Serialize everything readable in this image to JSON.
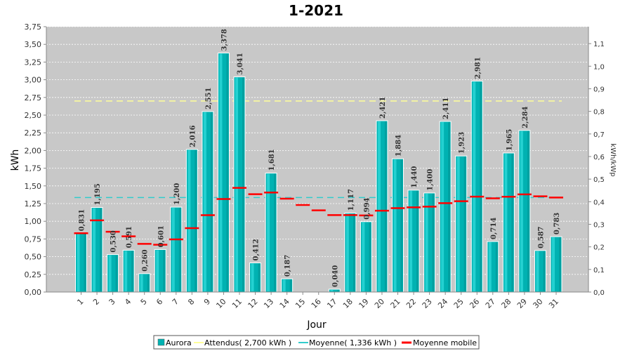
{
  "chart_data": {
    "type": "bar",
    "title": "1-2021",
    "xlabel": "Jour",
    "ylabel": "kWh",
    "y2label": "kWh/kWp",
    "ylim": [
      0,
      3.75
    ],
    "y2lim": [
      0,
      1.175
    ],
    "yticks": [
      "0,00",
      "0,25",
      "0,50",
      "0,75",
      "1,00",
      "1,25",
      "1,50",
      "1,75",
      "2,00",
      "2,25",
      "2,50",
      "2,75",
      "3,00",
      "3,25",
      "3,50",
      "3,75"
    ],
    "y2ticks": [
      "0,0",
      "0,1",
      "0,2",
      "0,3",
      "0,4",
      "0,5",
      "0,6",
      "0,7",
      "0,8",
      "0,9",
      "1,0",
      "1,1"
    ],
    "grid": true,
    "categories": [
      "1",
      "2",
      "3",
      "4",
      "5",
      "6",
      "7",
      "8",
      "9",
      "10",
      "11",
      "12",
      "13",
      "14",
      "15",
      "16",
      "17",
      "18",
      "19",
      "20",
      "21",
      "22",
      "23",
      "24",
      "25",
      "26",
      "27",
      "28",
      "29",
      "30",
      "31"
    ],
    "series": [
      {
        "name": "Aurora",
        "kind": "bar",
        "color": "#00b2b2",
        "values": [
          0.831,
          1.195,
          0.53,
          0.591,
          0.26,
          0.601,
          1.2,
          2.016,
          2.551,
          3.378,
          3.041,
          0.412,
          1.681,
          0.187,
          null,
          null,
          0.04,
          1.117,
          0.994,
          2.421,
          1.884,
          1.44,
          1.4,
          2.411,
          1.923,
          2.981,
          0.714,
          1.965,
          2.284,
          0.587,
          0.783
        ],
        "labels": [
          "0,831",
          "1,195",
          "0,530",
          "0,591",
          "0,260",
          "0,601",
          "1,200",
          "2,016",
          "2,551",
          "3,378",
          "3,041",
          "0,412",
          "1,681",
          "0,187",
          "",
          "",
          "0,040",
          "1,117",
          "0,994",
          "2,421",
          "1,884",
          "1,440",
          "1,400",
          "2,411",
          "1,923",
          "2,981",
          "0,714",
          "1,965",
          "2,284",
          "0,587",
          "0,783"
        ]
      },
      {
        "name": "Attendus( 2,700 kWh )",
        "kind": "dashed-line",
        "color": "#ffff99",
        "value": 2.7
      },
      {
        "name": "Moyenne( 1,336 kWh )",
        "kind": "dashed-line",
        "color": "#33cccc",
        "value": 1.336
      },
      {
        "name": "Moyenne mobile",
        "kind": "step-marker",
        "color": "#ff0000",
        "values": [
          0.831,
          1.013,
          0.852,
          0.787,
          0.681,
          0.668,
          0.744,
          0.903,
          1.086,
          1.315,
          1.472,
          1.383,
          1.406,
          1.319,
          1.23,
          1.154,
          1.088,
          1.088,
          1.083,
          1.15,
          1.185,
          1.197,
          1.206,
          1.256,
          1.283,
          1.348,
          1.324,
          1.347,
          1.38,
          1.353,
          1.335
        ]
      }
    ],
    "legend_position": "bottom",
    "plot_background": "#c8c8c8"
  }
}
